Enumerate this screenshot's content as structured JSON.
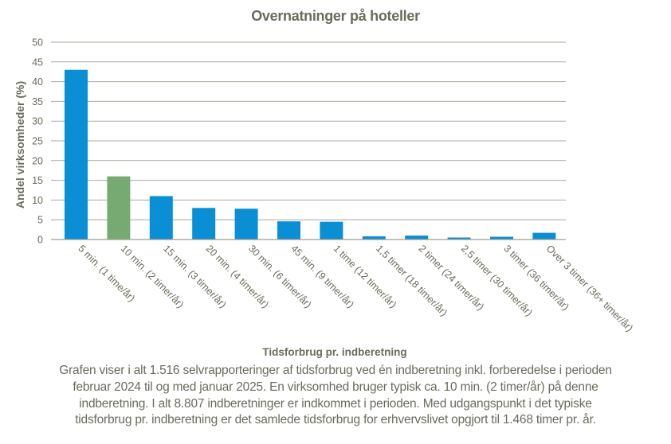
{
  "chart_data": {
    "type": "bar",
    "title": "Overnatninger på hoteller",
    "xlabel": "Tidsforbrug pr. indberetning",
    "ylabel": "Andel virksomheder (%)",
    "ylim": [
      0,
      50
    ],
    "ytick_step": 5,
    "grid": true,
    "legend": "none",
    "categories": [
      "5 min. (1 time/år)",
      "10 min. (2 timer/år)",
      "15 min. (3 timer/år)",
      "20 min. (4 timer/år)",
      "30 min. (6 timer/år)",
      "45 min. (9 timer/år)",
      "1 time (12 timer/år)",
      "1,5 timer (18 timer/år)",
      "2 timer (24 timer/år)",
      "2,5 timer (30 timer/år)",
      "3 timer (36 timer/år)",
      "Over 3 timer (36+ timer/år)"
    ],
    "values": [
      43,
      16,
      11,
      8,
      7.8,
      4.6,
      4.5,
      0.8,
      1.0,
      0.5,
      0.7,
      1.7
    ],
    "highlight_index": 1
  },
  "colors": {
    "bar": "#0a8fd4",
    "bar_highlight": "#76aa72",
    "text": "#6b6b5c",
    "grid": "#a9a99b",
    "axis": "#9d9d90"
  },
  "footer": {
    "lines": [
      "Grafen viser i alt 1.516 selvrapporteringer af tidsforbrug ved én indberetning inkl. forberedelse i perioden",
      "februar 2024 til og med januar 2025. En virksomhed bruger typisk ca. 10 min. (2 timer/år) på denne",
      "indberetning. I alt 8.807 indberetninger er indkommet i perioden. Med udgangspunkt i det typiske",
      "tidsforbrug pr. indberetning er det samlede tidsforbrug for erhvervslivet opgjort til 1.468 timer pr. år."
    ]
  }
}
